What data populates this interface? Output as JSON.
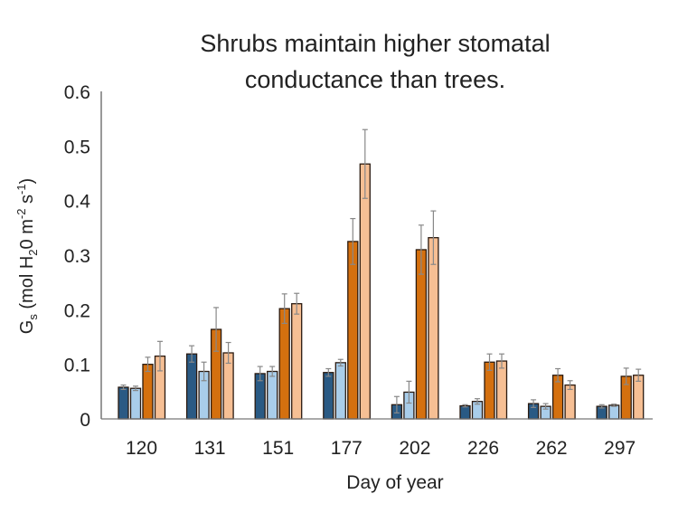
{
  "chart_data": {
    "type": "bar",
    "title": [
      "Shrubs maintain higher stomatal",
      "conductance than trees."
    ],
    "xlabel": "Day of year",
    "ylabel": {
      "main": "G",
      "sub": "s",
      "unit_a": " (mol H",
      "sub2": "2",
      "unit_b": "0 m",
      "sup1": "-2",
      "unit_c": " s",
      "sup2": "-1",
      "unit_d": ")"
    },
    "ylim": [
      0,
      0.6
    ],
    "yticks": [
      "0",
      "0.1",
      "0.2",
      "0.3",
      "0.4",
      "0.5",
      "0.6"
    ],
    "categories": [
      "120",
      "131",
      "151",
      "177",
      "202",
      "226",
      "262",
      "297"
    ],
    "series": [
      {
        "name": "series 1",
        "color": "#2a5a84",
        "values": [
          0.058,
          0.119,
          0.083,
          0.085,
          0.026,
          0.024,
          0.028,
          0.023
        ],
        "errors": [
          0.004,
          0.015,
          0.013,
          0.007,
          0.015,
          0.002,
          0.007,
          0.003
        ]
      },
      {
        "name": "series 2",
        "color": "#a9cdea",
        "values": [
          0.056,
          0.087,
          0.087,
          0.103,
          0.049,
          0.032,
          0.023,
          0.025
        ],
        "errors": [
          0.004,
          0.017,
          0.009,
          0.006,
          0.02,
          0.005,
          0.005,
          0.002
        ]
      },
      {
        "name": "series 3",
        "color": "#d4700f",
        "values": [
          0.1,
          0.164,
          0.202,
          0.325,
          0.31,
          0.104,
          0.08,
          0.078
        ],
        "errors": [
          0.013,
          0.04,
          0.027,
          0.042,
          0.045,
          0.015,
          0.012,
          0.015
        ]
      },
      {
        "name": "series 4",
        "color": "#f6bf94",
        "values": [
          0.115,
          0.121,
          0.211,
          0.467,
          0.332,
          0.106,
          0.062,
          0.08
        ],
        "errors": [
          0.027,
          0.019,
          0.019,
          0.063,
          0.049,
          0.013,
          0.008,
          0.011
        ]
      }
    ],
    "grid": false,
    "legend": "none"
  }
}
